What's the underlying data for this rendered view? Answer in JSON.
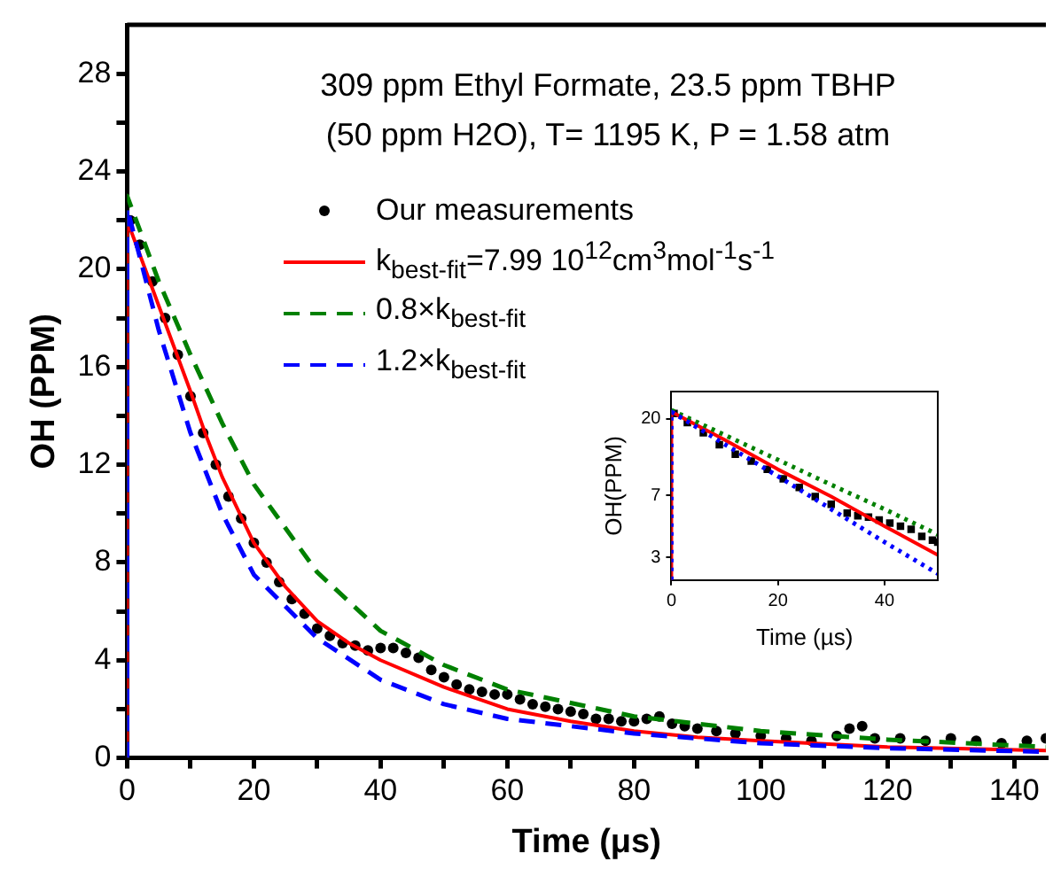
{
  "chart_data": [
    {
      "type": "line",
      "xlabel": "Time (μs)",
      "ylabel": "OH (PPM)",
      "annotations": [
        "309 ppm Ethyl Formate, 23.5 ppm TBHP",
        "(50 ppm H2O), T= 1195 K, P = 1.58 atm"
      ],
      "xlim": [
        0,
        145
      ],
      "ylim": [
        0,
        30
      ],
      "xticks": [
        0,
        {
          "value": 10,
          "label": null
        },
        20,
        {
          "value": 30,
          "label": null
        },
        40,
        {
          "value": 50,
          "label": null
        },
        60,
        {
          "value": 70,
          "label": null
        },
        80,
        {
          "value": 90,
          "label": null
        },
        100,
        {
          "value": 110,
          "label": null
        },
        120,
        {
          "value": 130,
          "label": null
        },
        140
      ],
      "yticks": [
        0,
        {
          "value": 2,
          "label": null
        },
        4,
        {
          "value": 6,
          "label": null
        },
        8,
        {
          "value": 10,
          "label": null
        },
        12,
        {
          "value": 14,
          "label": null
        },
        16,
        {
          "value": 18,
          "label": null
        },
        20,
        {
          "value": 22,
          "label": null
        },
        24,
        {
          "value": 26,
          "label": null
        },
        28
      ],
      "grid": false,
      "legend": "top",
      "series": [
        {
          "name": "Our measurements",
          "type": "scatter",
          "marker": "circle",
          "color": "#000000",
          "x": [
            0.5,
            2,
            4,
            6,
            8,
            10,
            12,
            14,
            16,
            18,
            20,
            22,
            24,
            26,
            28,
            30,
            32,
            34,
            36,
            38,
            40,
            42,
            44,
            46,
            48,
            50,
            52,
            54,
            56,
            58,
            60,
            62,
            64,
            66,
            68,
            70,
            72,
            74,
            76,
            78,
            80,
            82,
            84,
            86,
            88,
            90,
            93,
            96,
            100,
            104,
            108,
            112,
            114,
            116,
            118,
            122,
            126,
            130,
            134,
            138,
            142,
            145
          ],
          "values": [
            22,
            21,
            19.5,
            18,
            16.5,
            14.8,
            13.3,
            12,
            10.7,
            9.8,
            8.8,
            8,
            7.2,
            6.5,
            5.9,
            5.3,
            5,
            4.7,
            4.6,
            4.4,
            4.5,
            4.5,
            4.3,
            4.1,
            3.6,
            3.3,
            3,
            2.8,
            2.7,
            2.6,
            2.6,
            2.4,
            2.2,
            2.1,
            2,
            1.9,
            1.8,
            1.6,
            1.6,
            1.5,
            1.5,
            1.6,
            1.7,
            1.4,
            1.3,
            1.2,
            1.1,
            1,
            0.9,
            0.8,
            0.7,
            0.9,
            1.2,
            1.3,
            0.8,
            0.8,
            0.7,
            0.8,
            0.7,
            0.6,
            0.7,
            0.8
          ]
        },
        {
          "name": "k$_{best-fit}$=7.99 10$^{12}$cm$^{3}$mol$^{-1}$s$^{-1}$",
          "color": "#ff0000",
          "line_style": "solid",
          "x": [
            0,
            0,
            5,
            10,
            12.3,
            15,
            20,
            25,
            30,
            35,
            40,
            50,
            60,
            70,
            80,
            90,
            100,
            120,
            145
          ],
          "values": [
            0,
            22,
            18.5,
            15,
            13.3,
            11.5,
            8.8,
            7,
            5.6,
            4.7,
            4,
            2.9,
            2,
            1.5,
            1.1,
            0.85,
            0.7,
            0.45,
            0.3
          ]
        },
        {
          "name": "0.8×k$_{best-fit}$",
          "color": "#008000",
          "line_style": "dashed",
          "x": [
            0,
            0,
            5,
            10,
            15,
            20,
            30,
            40,
            50,
            60,
            80,
            100,
            120,
            145
          ],
          "values": [
            0,
            23,
            19.5,
            16.5,
            13.7,
            11.2,
            7.6,
            5.2,
            3.8,
            2.8,
            1.7,
            1.1,
            0.75,
            0.45
          ]
        },
        {
          "name": "1.2×k$_{best-fit}$",
          "color": "#0000ff",
          "line_style": "dashed",
          "x": [
            0,
            0,
            5,
            10,
            15,
            20,
            30,
            40,
            50,
            60,
            80,
            100,
            120,
            145
          ],
          "values": [
            0,
            22.5,
            17.5,
            13.3,
            10,
            7.5,
            4.9,
            3.2,
            2.2,
            1.6,
            1,
            0.6,
            0.4,
            0.25
          ]
        }
      ]
    },
    {
      "type": "line",
      "xlabel": "Time (µs)",
      "ylabel": "OH(PPM)",
      "log": "y",
      "xlim": [
        0,
        50
      ],
      "ylim": [
        2.2,
        29
      ],
      "xticks": [
        0,
        20,
        40
      ],
      "yticks": [
        3,
        7,
        20
      ],
      "grid": false,
      "series": [
        {
          "type": "scatter",
          "marker": "square",
          "color": "#000000",
          "x": [
            0.5,
            3,
            6,
            9,
            12,
            15,
            18,
            21,
            24,
            27,
            30,
            33,
            35,
            37,
            39,
            41,
            43,
            45,
            47,
            49,
            50
          ],
          "values": [
            21.5,
            19,
            16.5,
            14,
            12.3,
            11.2,
            10,
            8.8,
            7.8,
            6.9,
            6.2,
            5.5,
            5.3,
            5.2,
            5,
            4.8,
            4.6,
            4.4,
            4,
            3.8,
            3.7
          ]
        },
        {
          "color": "#ff0000",
          "line_style": "solid",
          "x": [
            0,
            0,
            10,
            20,
            30,
            40,
            50
          ],
          "values": [
            2.2,
            22,
            15,
            10,
            6.9,
            4.6,
            3.1
          ]
        },
        {
          "color": "#008000",
          "line_style": "dotted",
          "x": [
            0,
            10,
            20,
            30,
            40,
            50
          ],
          "values": [
            22.5,
            16,
            11.4,
            8.1,
            5.8,
            4.1
          ]
        },
        {
          "color": "#0000ff",
          "line_style": "dotted",
          "x": [
            0,
            0,
            10,
            20,
            30,
            40,
            50
          ],
          "values": [
            2.2,
            22,
            14.1,
            9.1,
            5.8,
            3.7,
            2.4
          ]
        }
      ]
    }
  ]
}
